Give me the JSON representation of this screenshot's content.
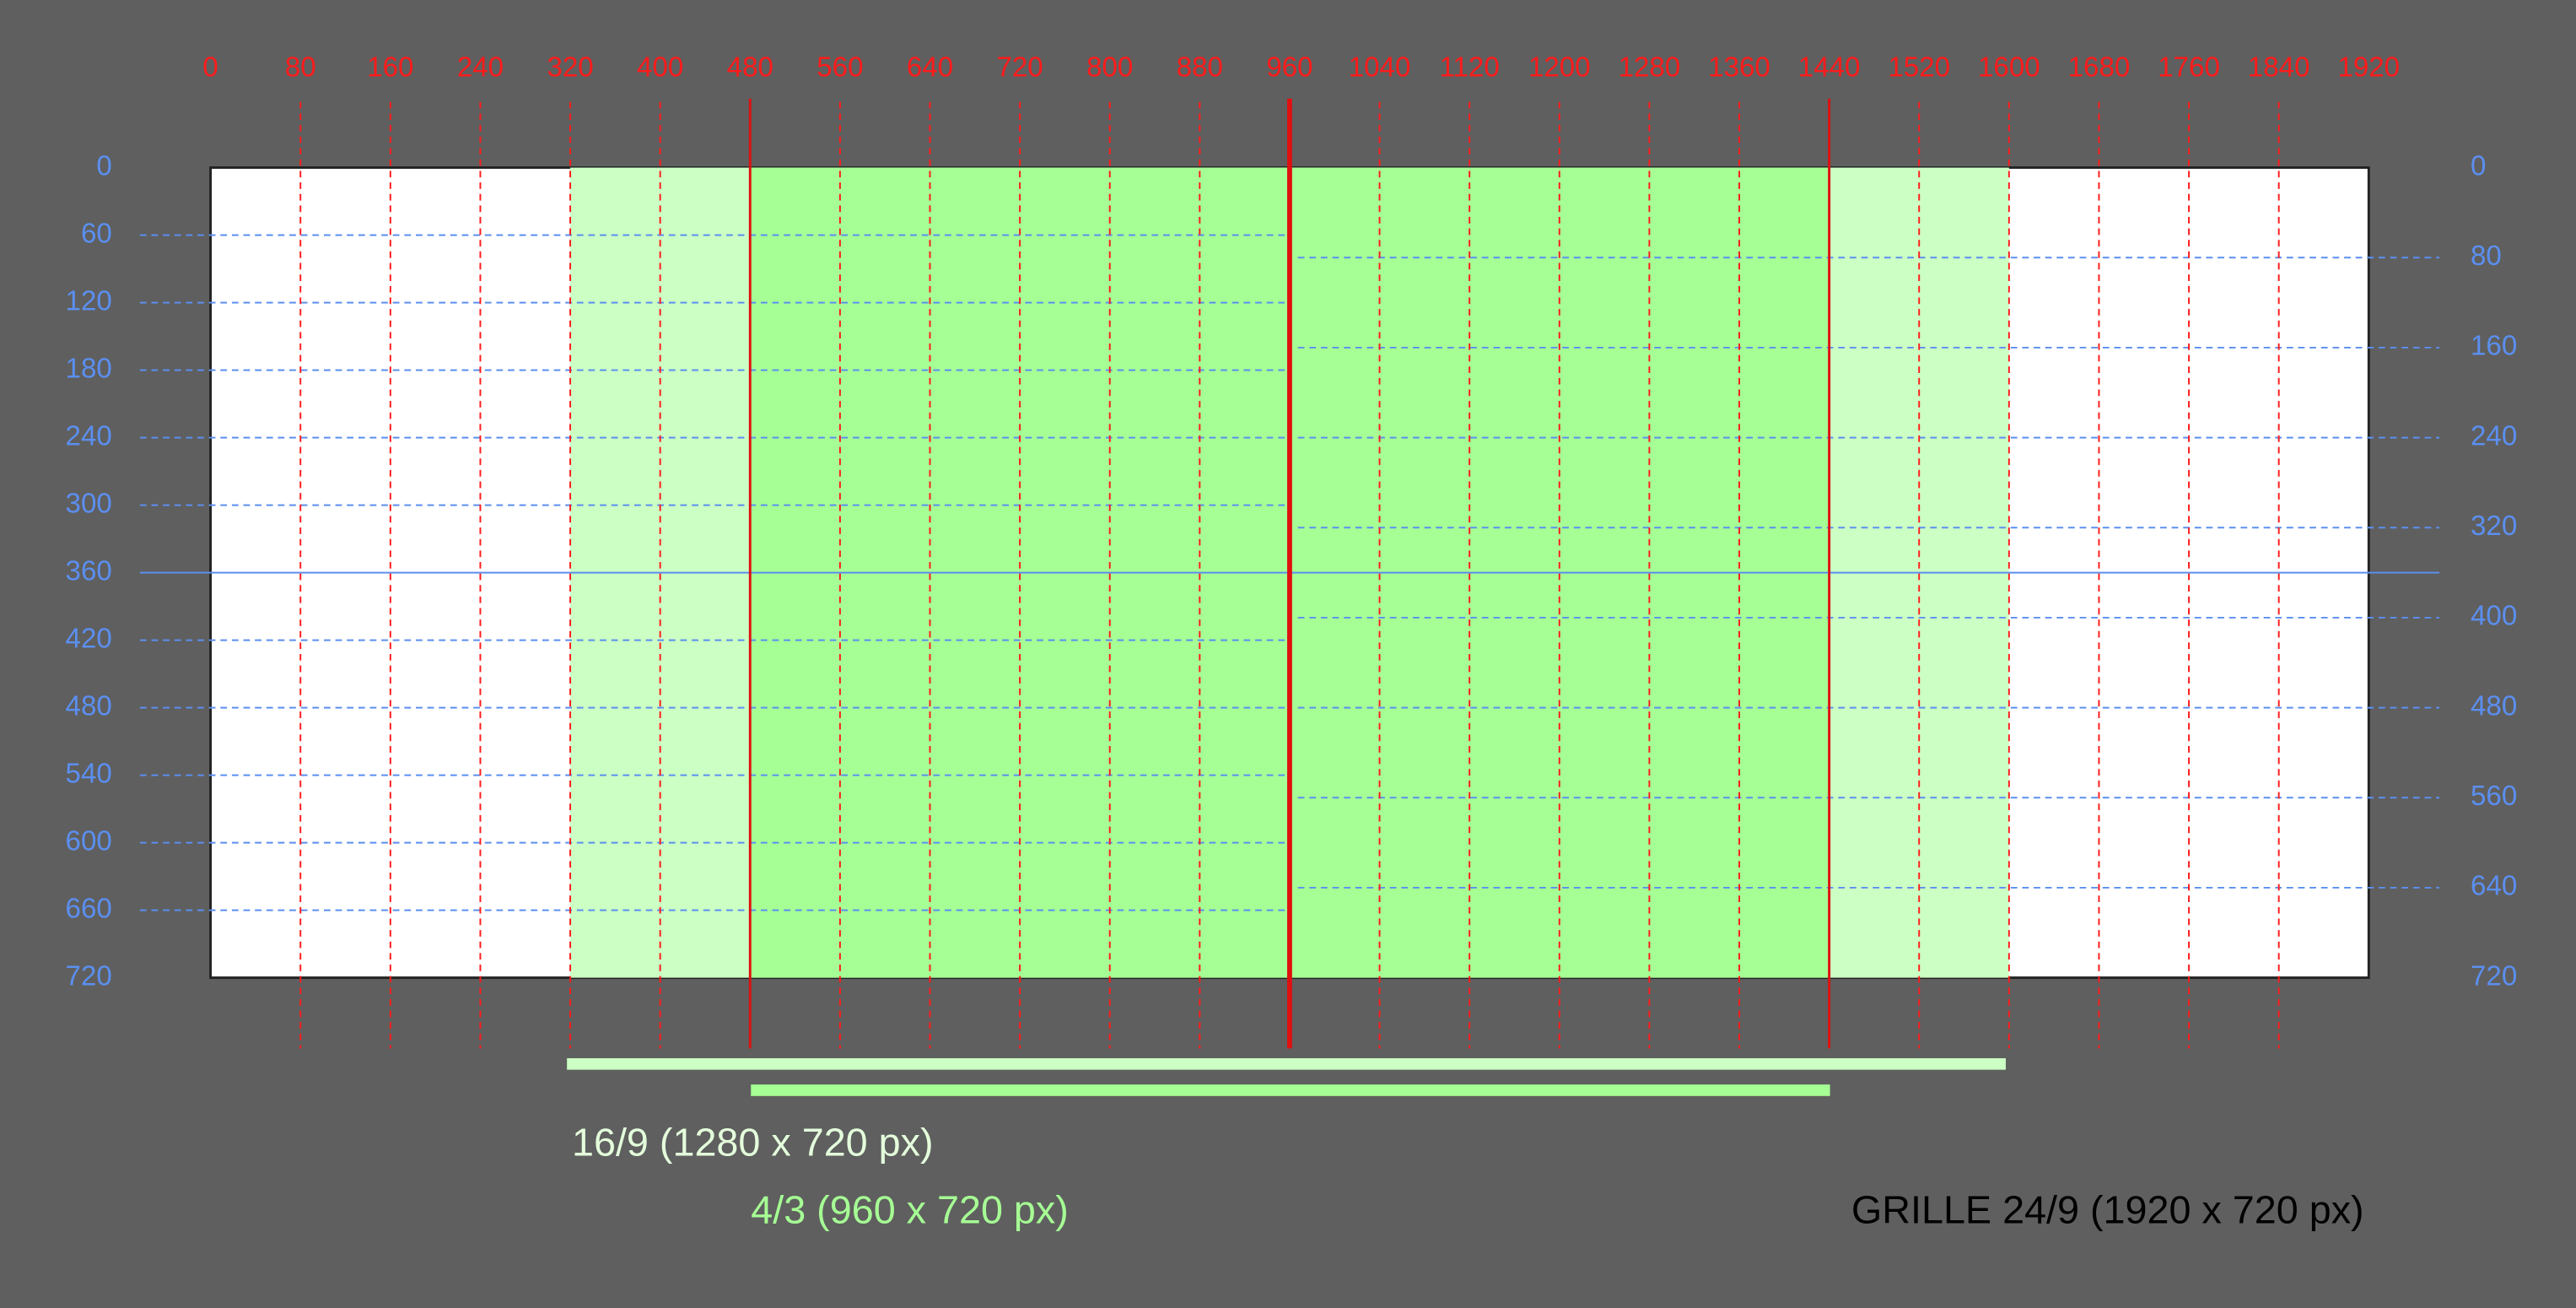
{
  "x_labels": [
    0,
    80,
    160,
    240,
    320,
    400,
    480,
    560,
    640,
    720,
    800,
    880,
    960,
    1040,
    1120,
    1200,
    1280,
    1360,
    1440,
    1520,
    1600,
    1680,
    1760,
    1840,
    1920
  ],
  "y_labels_left": [
    0,
    60,
    120,
    180,
    240,
    300,
    360,
    420,
    480,
    540,
    600,
    660,
    720
  ],
  "y_labels_right": [
    0,
    80,
    160,
    240,
    320,
    400,
    480,
    560,
    640,
    720
  ],
  "labels": {
    "wide": "16/9 (1280 x 720 px)",
    "standard": "4/3 (960 x 720 px)",
    "grid": "GRILLE 24/9 (1920 x 720 px)"
  }
}
